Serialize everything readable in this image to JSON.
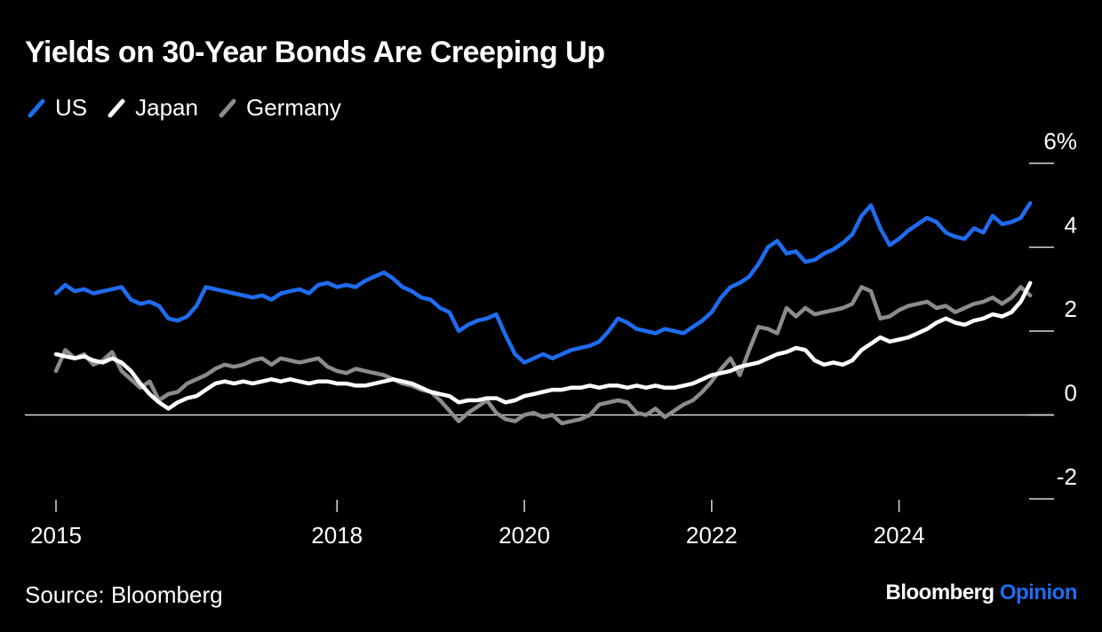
{
  "title": "Yields on 30-Year Bonds Are Creeping Up",
  "source": "Source: Bloomberg",
  "brand": {
    "name": "Bloomberg",
    "suffix": "Opinion"
  },
  "colors": {
    "us": "#1f6cf0",
    "japan": "#ffffff",
    "germany": "#8c8c8c",
    "accent": "#1f6cf0"
  },
  "legend": [
    {
      "label": "US",
      "series": "us"
    },
    {
      "label": "Japan",
      "series": "japan"
    },
    {
      "label": "Germany",
      "series": "germany"
    }
  ],
  "chart_data": {
    "type": "line",
    "title": "Yields on 30-Year Bonds Are Creeping Up",
    "xlabel": "",
    "ylabel": "",
    "xlim": [
      2015.0,
      2025.55
    ],
    "ylim": [
      -2,
      6
    ],
    "y_ticks": [
      {
        "value": 6,
        "label": "6%"
      },
      {
        "value": 4,
        "label": "4"
      },
      {
        "value": 2,
        "label": "2"
      },
      {
        "value": 0,
        "label": "0"
      },
      {
        "value": -2,
        "label": "-2"
      }
    ],
    "x_ticks": [
      {
        "value": 2015,
        "label": "2015"
      },
      {
        "value": 2018,
        "label": "2018"
      },
      {
        "value": 2020,
        "label": "2020"
      },
      {
        "value": 2022,
        "label": "2022"
      },
      {
        "value": 2024,
        "label": "2024"
      }
    ],
    "series": [
      {
        "name": "US",
        "key": "us",
        "x": [
          2015.0,
          2015.1,
          2015.2,
          2015.3,
          2015.4,
          2015.5,
          2015.6,
          2015.7,
          2015.8,
          2015.9,
          2016.0,
          2016.1,
          2016.2,
          2016.3,
          2016.4,
          2016.5,
          2016.6,
          2016.7,
          2016.8,
          2016.9,
          2017.0,
          2017.1,
          2017.2,
          2017.3,
          2017.4,
          2017.5,
          2017.6,
          2017.7,
          2017.8,
          2017.9,
          2018.0,
          2018.1,
          2018.2,
          2018.3,
          2018.4,
          2018.5,
          2018.6,
          2018.7,
          2018.8,
          2018.9,
          2019.0,
          2019.1,
          2019.2,
          2019.3,
          2019.4,
          2019.5,
          2019.6,
          2019.7,
          2019.8,
          2019.9,
          2020.0,
          2020.1,
          2020.2,
          2020.3,
          2020.4,
          2020.5,
          2020.6,
          2020.7,
          2020.8,
          2020.9,
          2021.0,
          2021.1,
          2021.2,
          2021.3,
          2021.4,
          2021.5,
          2021.6,
          2021.7,
          2021.8,
          2021.9,
          2022.0,
          2022.1,
          2022.2,
          2022.3,
          2022.4,
          2022.5,
          2022.6,
          2022.7,
          2022.8,
          2022.9,
          2023.0,
          2023.1,
          2023.2,
          2023.3,
          2023.4,
          2023.5,
          2023.6,
          2023.7,
          2023.8,
          2023.9,
          2024.0,
          2024.1,
          2024.2,
          2024.3,
          2024.4,
          2024.5,
          2024.6,
          2024.7,
          2024.8,
          2024.9,
          2025.0,
          2025.1,
          2025.2,
          2025.3,
          2025.4
        ],
        "values": [
          2.9,
          3.1,
          2.95,
          3.0,
          2.9,
          2.95,
          3.0,
          3.05,
          2.75,
          2.65,
          2.7,
          2.6,
          2.3,
          2.25,
          2.35,
          2.6,
          3.05,
          3.0,
          2.95,
          2.9,
          2.85,
          2.8,
          2.85,
          2.75,
          2.9,
          2.95,
          3.0,
          2.9,
          3.1,
          3.15,
          3.05,
          3.1,
          3.05,
          3.2,
          3.3,
          3.4,
          3.25,
          3.05,
          2.95,
          2.8,
          2.75,
          2.55,
          2.45,
          2.0,
          2.15,
          2.25,
          2.3,
          2.4,
          1.9,
          1.45,
          1.25,
          1.35,
          1.45,
          1.35,
          1.45,
          1.55,
          1.6,
          1.65,
          1.75,
          2.0,
          2.3,
          2.2,
          2.05,
          2.0,
          1.95,
          2.05,
          2.0,
          1.95,
          2.1,
          2.25,
          2.45,
          2.8,
          3.05,
          3.15,
          3.3,
          3.6,
          4.0,
          4.15,
          3.85,
          3.9,
          3.65,
          3.7,
          3.85,
          3.95,
          4.1,
          4.3,
          4.75,
          5.0,
          4.45,
          4.05,
          4.2,
          4.4,
          4.55,
          4.7,
          4.6,
          4.35,
          4.25,
          4.2,
          4.45,
          4.35,
          4.75,
          4.55,
          4.6,
          4.7,
          5.05
        ]
      },
      {
        "name": "Japan",
        "key": "japan",
        "x": [
          2015.0,
          2015.1,
          2015.2,
          2015.3,
          2015.4,
          2015.5,
          2015.6,
          2015.7,
          2015.8,
          2015.9,
          2016.0,
          2016.1,
          2016.2,
          2016.3,
          2016.4,
          2016.5,
          2016.6,
          2016.7,
          2016.8,
          2016.9,
          2017.0,
          2017.1,
          2017.2,
          2017.3,
          2017.4,
          2017.5,
          2017.6,
          2017.7,
          2017.8,
          2017.9,
          2018.0,
          2018.1,
          2018.2,
          2018.3,
          2018.4,
          2018.5,
          2018.6,
          2018.7,
          2018.8,
          2018.9,
          2019.0,
          2019.1,
          2019.2,
          2019.3,
          2019.4,
          2019.5,
          2019.6,
          2019.7,
          2019.8,
          2019.9,
          2020.0,
          2020.1,
          2020.2,
          2020.3,
          2020.4,
          2020.5,
          2020.6,
          2020.7,
          2020.8,
          2020.9,
          2021.0,
          2021.1,
          2021.2,
          2021.3,
          2021.4,
          2021.5,
          2021.6,
          2021.7,
          2021.8,
          2021.9,
          2022.0,
          2022.1,
          2022.2,
          2022.3,
          2022.4,
          2022.5,
          2022.6,
          2022.7,
          2022.8,
          2022.9,
          2023.0,
          2023.1,
          2023.2,
          2023.3,
          2023.4,
          2023.5,
          2023.6,
          2023.7,
          2023.8,
          2023.9,
          2024.0,
          2024.1,
          2024.2,
          2024.3,
          2024.4,
          2024.5,
          2024.6,
          2024.7,
          2024.8,
          2024.9,
          2025.0,
          2025.1,
          2025.2,
          2025.3,
          2025.4
        ],
        "values": [
          1.45,
          1.4,
          1.35,
          1.4,
          1.3,
          1.25,
          1.35,
          1.25,
          1.05,
          0.75,
          0.5,
          0.3,
          0.15,
          0.3,
          0.4,
          0.45,
          0.6,
          0.75,
          0.8,
          0.75,
          0.8,
          0.75,
          0.8,
          0.85,
          0.8,
          0.85,
          0.8,
          0.75,
          0.8,
          0.8,
          0.75,
          0.75,
          0.7,
          0.7,
          0.75,
          0.8,
          0.85,
          0.8,
          0.75,
          0.65,
          0.55,
          0.5,
          0.45,
          0.3,
          0.35,
          0.35,
          0.4,
          0.4,
          0.3,
          0.35,
          0.45,
          0.5,
          0.55,
          0.6,
          0.6,
          0.65,
          0.65,
          0.7,
          0.65,
          0.7,
          0.7,
          0.65,
          0.7,
          0.65,
          0.7,
          0.65,
          0.65,
          0.7,
          0.75,
          0.85,
          0.95,
          1.0,
          1.05,
          1.15,
          1.2,
          1.25,
          1.35,
          1.45,
          1.5,
          1.6,
          1.55,
          1.3,
          1.2,
          1.25,
          1.2,
          1.3,
          1.55,
          1.7,
          1.85,
          1.75,
          1.8,
          1.85,
          1.95,
          2.05,
          2.2,
          2.3,
          2.2,
          2.15,
          2.25,
          2.3,
          2.4,
          2.35,
          2.45,
          2.7,
          3.15
        ]
      },
      {
        "name": "Germany",
        "key": "germany",
        "x": [
          2015.0,
          2015.1,
          2015.2,
          2015.3,
          2015.4,
          2015.5,
          2015.6,
          2015.7,
          2015.8,
          2015.9,
          2016.0,
          2016.1,
          2016.2,
          2016.3,
          2016.4,
          2016.5,
          2016.6,
          2016.7,
          2016.8,
          2016.9,
          2017.0,
          2017.1,
          2017.2,
          2017.3,
          2017.4,
          2017.5,
          2017.6,
          2017.7,
          2017.8,
          2017.9,
          2018.0,
          2018.1,
          2018.2,
          2018.3,
          2018.4,
          2018.5,
          2018.6,
          2018.7,
          2018.8,
          2018.9,
          2019.0,
          2019.1,
          2019.2,
          2019.3,
          2019.4,
          2019.5,
          2019.6,
          2019.7,
          2019.8,
          2019.9,
          2020.0,
          2020.1,
          2020.2,
          2020.3,
          2020.4,
          2020.5,
          2020.6,
          2020.7,
          2020.8,
          2020.9,
          2021.0,
          2021.1,
          2021.2,
          2021.3,
          2021.4,
          2021.5,
          2021.6,
          2021.7,
          2021.8,
          2021.9,
          2022.0,
          2022.1,
          2022.2,
          2022.3,
          2022.4,
          2022.5,
          2022.6,
          2022.7,
          2022.8,
          2022.9,
          2023.0,
          2023.1,
          2023.2,
          2023.3,
          2023.4,
          2023.5,
          2023.6,
          2023.7,
          2023.8,
          2023.9,
          2024.0,
          2024.1,
          2024.2,
          2024.3,
          2024.4,
          2024.5,
          2024.6,
          2024.7,
          2024.8,
          2024.9,
          2025.0,
          2025.1,
          2025.2,
          2025.3,
          2025.4
        ],
        "values": [
          1.05,
          1.55,
          1.35,
          1.45,
          1.2,
          1.3,
          1.5,
          1.05,
          0.85,
          0.65,
          0.8,
          0.35,
          0.5,
          0.55,
          0.75,
          0.85,
          0.95,
          1.1,
          1.2,
          1.15,
          1.2,
          1.3,
          1.35,
          1.2,
          1.35,
          1.3,
          1.25,
          1.3,
          1.35,
          1.15,
          1.05,
          1.0,
          1.1,
          1.05,
          1.0,
          0.95,
          0.85,
          0.75,
          0.7,
          0.6,
          0.55,
          0.35,
          0.1,
          -0.15,
          0.05,
          0.2,
          0.35,
          0.05,
          -0.1,
          -0.15,
          0.0,
          0.05,
          -0.05,
          0.0,
          -0.2,
          -0.15,
          -0.1,
          0.0,
          0.25,
          0.3,
          0.35,
          0.3,
          0.05,
          0.0,
          0.15,
          -0.05,
          0.1,
          0.25,
          0.35,
          0.55,
          0.8,
          1.1,
          1.35,
          0.95,
          1.55,
          2.1,
          2.05,
          1.95,
          2.55,
          2.35,
          2.55,
          2.4,
          2.45,
          2.5,
          2.55,
          2.65,
          3.05,
          2.95,
          2.3,
          2.35,
          2.5,
          2.6,
          2.65,
          2.7,
          2.55,
          2.6,
          2.45,
          2.55,
          2.65,
          2.7,
          2.8,
          2.65,
          2.8,
          3.05,
          2.85
        ]
      }
    ]
  }
}
